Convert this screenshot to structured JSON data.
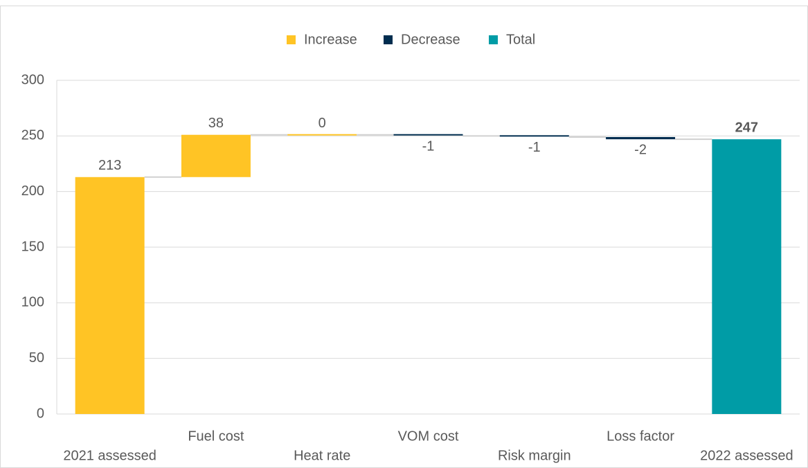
{
  "chart_data": {
    "type": "waterfall",
    "categories": [
      "2021 assessed",
      "Fuel cost",
      "Heat rate",
      "VOM cost",
      "Risk margin",
      "Loss factor",
      "2022 assessed"
    ],
    "values": [
      213,
      38,
      0,
      -1,
      -1,
      -2,
      247
    ],
    "series": [
      {
        "name": "Increase",
        "color": "#ffc425"
      },
      {
        "name": "Decrease",
        "color": "#002d4f"
      },
      {
        "name": "Total",
        "color": "#009ca6"
      }
    ],
    "ylim": [
      0,
      300
    ],
    "yticks": [
      0,
      50,
      100,
      150,
      200,
      250,
      300
    ],
    "grid": true
  }
}
